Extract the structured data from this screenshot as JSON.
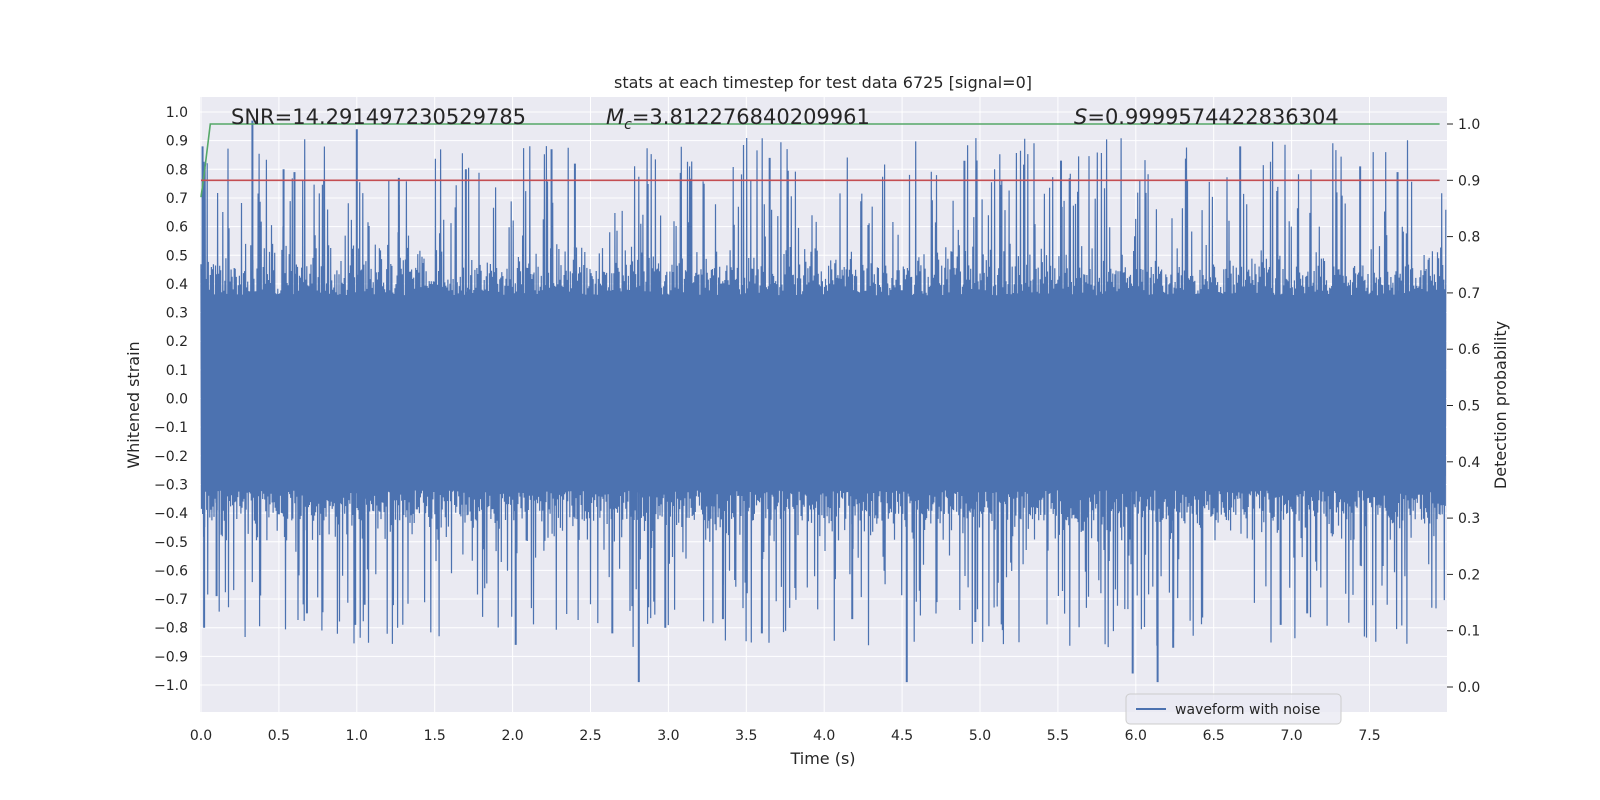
{
  "chart_data": {
    "type": "line",
    "title": "stats at each timestep for test data 6725 [signal=0]",
    "xlabel": "Time (s)",
    "ylabel": "Whitened strain",
    "y2label": "Detection probability",
    "xlim": [
      0.0,
      8.0
    ],
    "ylim": [
      -1.09,
      1.05
    ],
    "y2lim": [
      -0.05,
      1.04
    ],
    "xticks": [
      0.0,
      0.5,
      1.0,
      1.5,
      2.0,
      2.5,
      3.0,
      3.5,
      4.0,
      4.5,
      5.0,
      5.5,
      6.0,
      6.5,
      7.0,
      7.5
    ],
    "xtick_labels": [
      "0.0",
      "0.5",
      "1.0",
      "1.5",
      "2.0",
      "2.5",
      "3.0",
      "3.5",
      "4.0",
      "4.5",
      "5.0",
      "5.5",
      "6.0",
      "6.5",
      "7.0",
      "7.5"
    ],
    "yticks": [
      1.0,
      0.9,
      0.8,
      0.7,
      0.6,
      0.5,
      0.4,
      0.3,
      0.2,
      0.1,
      0.0,
      -0.1,
      -0.2,
      -0.3,
      -0.4,
      -0.5,
      -0.6,
      -0.7,
      -0.8,
      -0.9,
      -1.0
    ],
    "ytick_labels": [
      "1.0",
      "0.9",
      "0.8",
      "0.7",
      "0.6",
      "0.5",
      "0.4",
      "0.3",
      "0.2",
      "0.1",
      "0.0",
      "−0.1",
      "−0.2",
      "−0.3",
      "−0.4",
      "−0.5",
      "−0.6",
      "−0.7",
      "−0.8",
      "−0.9",
      "−1.0"
    ],
    "y2ticks": [
      1.0,
      0.9,
      0.8,
      0.7,
      0.6,
      0.5,
      0.4,
      0.3,
      0.2,
      0.1,
      0.0
    ],
    "y2tick_labels": [
      "1.0",
      "0.9",
      "0.8",
      "0.7",
      "0.6",
      "0.5",
      "0.4",
      "0.3",
      "0.2",
      "0.1",
      "0.0"
    ],
    "annotations": {
      "snr": "SNR=14.291497230529785",
      "mc_symbol": "M",
      "mc_sub": "c",
      "mc_value": "=3.812276840209961",
      "s_symbol": "S",
      "s_value": "=0.9999574422836304"
    },
    "legend": {
      "position": "lower-right",
      "label": "waveform with noise"
    },
    "series": [
      {
        "name": "waveform with noise",
        "color": "#4c72b0",
        "description": "dense whitened strain time series, 0 to ~7.99 s",
        "band_upper": 0.36,
        "band_lower": -0.32,
        "sample_count": 2400,
        "peaks": [
          {
            "x": 0.01,
            "y": 0.88
          },
          {
            "x": 0.02,
            "y": -0.8
          },
          {
            "x": 0.33,
            "y": 0.97
          },
          {
            "x": 0.1,
            "y": -0.69
          },
          {
            "x": 0.53,
            "y": 0.8
          },
          {
            "x": 0.6,
            "y": 0.79
          },
          {
            "x": 0.68,
            "y": -0.75
          },
          {
            "x": 0.79,
            "y": 0.76
          },
          {
            "x": 1.0,
            "y": 0.94
          },
          {
            "x": 0.99,
            "y": -0.79
          },
          {
            "x": 1.05,
            "y": -0.72
          },
          {
            "x": 1.27,
            "y": 0.77
          },
          {
            "x": 1.7,
            "y": 0.8
          },
          {
            "x": 2.02,
            "y": -0.86
          },
          {
            "x": 2.25,
            "y": 0.87
          },
          {
            "x": 2.4,
            "y": 0.82
          },
          {
            "x": 2.64,
            "y": -0.82
          },
          {
            "x": 2.81,
            "y": -0.99
          },
          {
            "x": 2.98,
            "y": -0.8
          },
          {
            "x": 3.35,
            "y": -0.77
          },
          {
            "x": 3.6,
            "y": -0.82
          },
          {
            "x": 3.65,
            "y": 0.84
          },
          {
            "x": 4.18,
            "y": -0.77
          },
          {
            "x": 4.53,
            "y": -0.99
          },
          {
            "x": 4.9,
            "y": 0.83
          },
          {
            "x": 4.97,
            "y": -0.78
          },
          {
            "x": 5.52,
            "y": 0.83
          },
          {
            "x": 5.98,
            "y": -0.96
          },
          {
            "x": 6.14,
            "y": -0.99
          },
          {
            "x": 6.24,
            "y": -0.87
          },
          {
            "x": 6.67,
            "y": 0.88
          },
          {
            "x": 6.93,
            "y": -0.79
          },
          {
            "x": 7.1,
            "y": -0.75
          },
          {
            "x": 7.44,
            "y": 0.81
          },
          {
            "x": 7.68,
            "y": 0.79
          }
        ]
      },
      {
        "name": "detection probability",
        "color": "#55a868",
        "axis": "right",
        "points": [
          [
            0.0,
            0.87
          ],
          [
            0.02,
            0.91
          ],
          [
            0.06,
            1.0
          ],
          [
            7.95,
            1.0
          ]
        ]
      },
      {
        "name": "threshold",
        "color": "#c44e52",
        "axis": "right",
        "points": [
          [
            0.0,
            0.9
          ],
          [
            7.95,
            0.9
          ]
        ]
      }
    ],
    "colors": {
      "background": "#eaeaf2",
      "grid": "#ffffff",
      "text": "#262626"
    }
  }
}
